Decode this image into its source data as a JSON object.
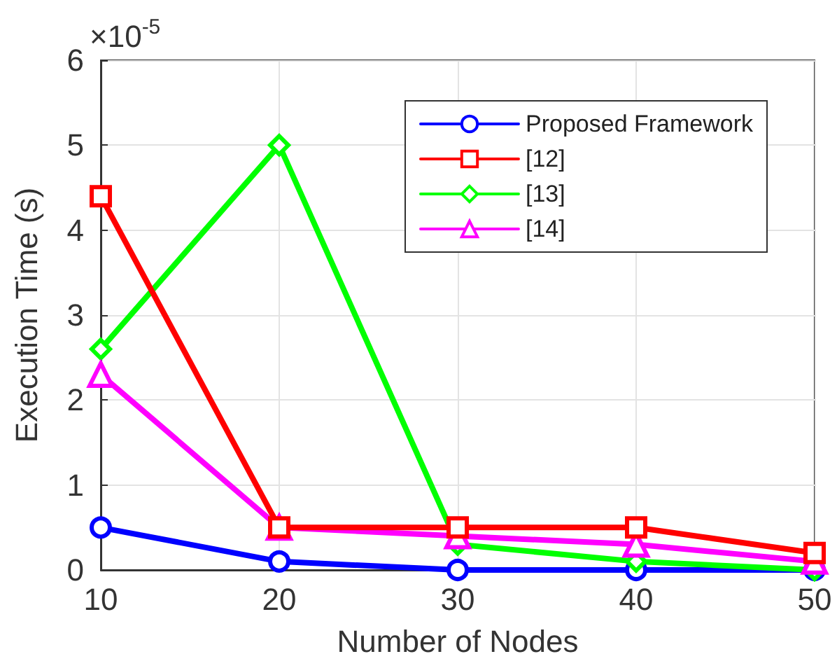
{
  "chart_data": {
    "type": "line",
    "xlabel": "Number of Nodes",
    "ylabel": "Execution Time (s)",
    "x": [
      10,
      20,
      30,
      40,
      50
    ],
    "xlim": [
      10,
      50
    ],
    "xticks": [
      10,
      20,
      30,
      40,
      50
    ],
    "ylim": [
      0,
      6
    ],
    "yticks": [
      0,
      1,
      2,
      3,
      4,
      5,
      6
    ],
    "grid": true,
    "legend": "top right",
    "line_style": "solid",
    "annotations": [
      "×10$^{-5}$"
    ],
    "series": [
      {
        "name": "Proposed Framework",
        "color": "#0000ff",
        "marker": "circle",
        "values": [
          0.5,
          0.1,
          0,
          0,
          0
        ]
      },
      {
        "name": "[12]",
        "color": "#ff0000",
        "marker": "square",
        "values": [
          4.4,
          0.5,
          0.5,
          0.5,
          0.2
        ]
      },
      {
        "name": "[13]",
        "color": "#00ff00",
        "marker": "diamond",
        "values": [
          2.6,
          5.0,
          0.3,
          0.1,
          0.0
        ]
      },
      {
        "name": "[14]",
        "color": "#ff00ff",
        "marker": "triangle",
        "values": [
          2.3,
          0.5,
          0.4,
          0.3,
          0.1
        ]
      }
    ]
  }
}
